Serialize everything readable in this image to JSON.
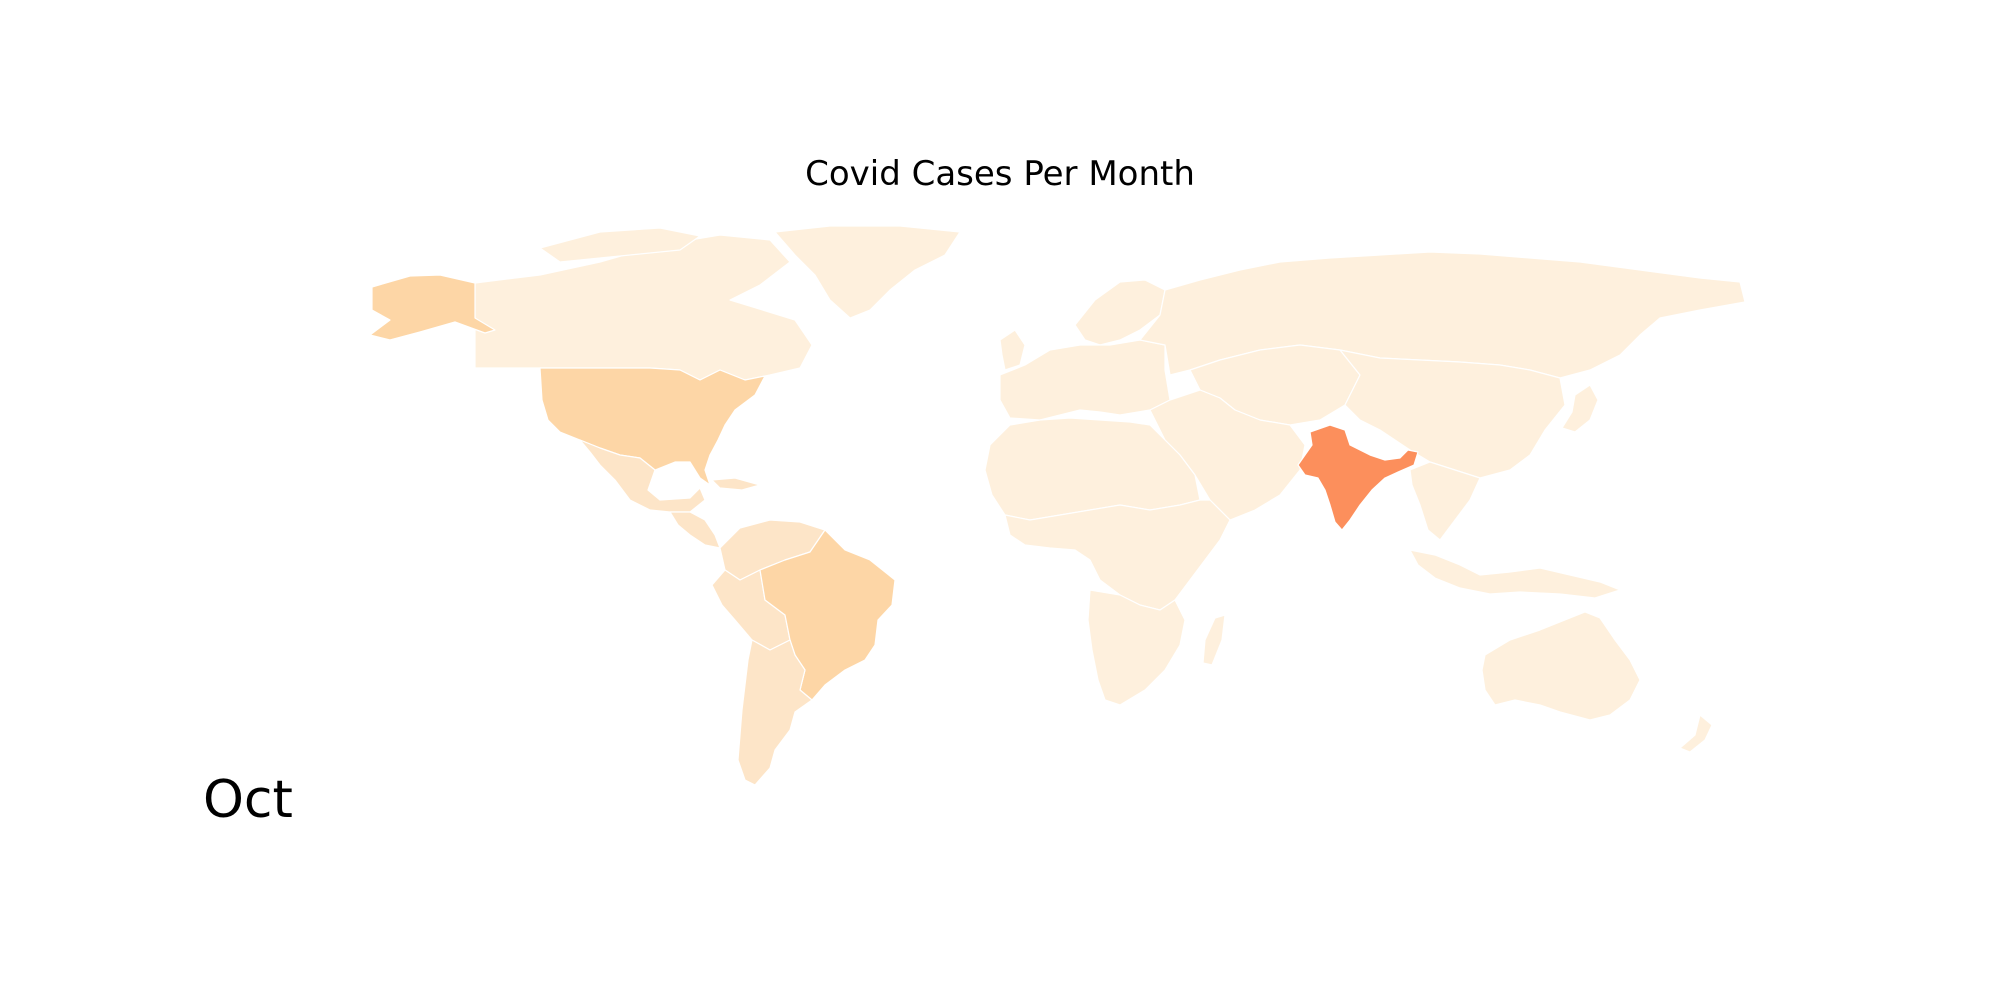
{
  "title": "Covid Cases Per Month",
  "month_label": "Oct",
  "colors": {
    "background": "#ffffff",
    "border": "#ffffff",
    "lowest": "#fef0dd",
    "low": "#fde5c8",
    "medium": "#fdd6a6",
    "highest": "#fc8f5c"
  },
  "legend": null,
  "regions": [
    {
      "id": "canada",
      "level": "lowest"
    },
    {
      "id": "greenland",
      "level": "lowest"
    },
    {
      "id": "alaska",
      "level": "medium"
    },
    {
      "id": "usa",
      "level": "medium"
    },
    {
      "id": "mexico",
      "level": "low"
    },
    {
      "id": "central-america",
      "level": "low"
    },
    {
      "id": "caribbean",
      "level": "low"
    },
    {
      "id": "venezuela-colombia",
      "level": "low"
    },
    {
      "id": "peru-bolivia",
      "level": "low"
    },
    {
      "id": "brazil",
      "level": "medium"
    },
    {
      "id": "argentina-chile",
      "level": "low"
    },
    {
      "id": "europe",
      "level": "lowest"
    },
    {
      "id": "uk",
      "level": "lowest"
    },
    {
      "id": "scandinavia",
      "level": "lowest"
    },
    {
      "id": "russia",
      "level": "lowest"
    },
    {
      "id": "central-asia",
      "level": "lowest"
    },
    {
      "id": "middle-east",
      "level": "lowest"
    },
    {
      "id": "north-africa",
      "level": "lowest"
    },
    {
      "id": "sub-saharan-africa",
      "level": "lowest"
    },
    {
      "id": "southern-africa",
      "level": "lowest"
    },
    {
      "id": "madagascar",
      "level": "lowest"
    },
    {
      "id": "india",
      "level": "highest"
    },
    {
      "id": "china",
      "level": "lowest"
    },
    {
      "id": "southeast-asia",
      "level": "lowest"
    },
    {
      "id": "japan",
      "level": "lowest"
    },
    {
      "id": "indonesia",
      "level": "lowest"
    },
    {
      "id": "australia",
      "level": "lowest"
    },
    {
      "id": "new-zealand",
      "level": "lowest"
    }
  ]
}
